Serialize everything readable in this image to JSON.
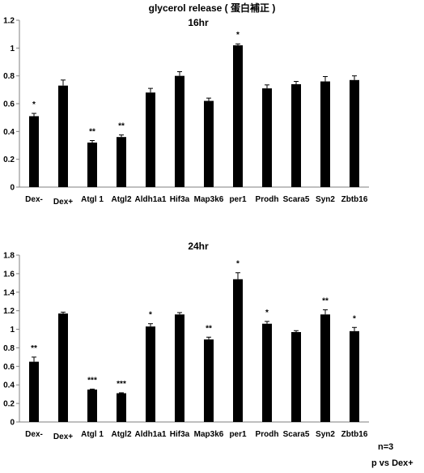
{
  "page": {
    "title": "glycerol release ( 蛋白補正 )",
    "footnote_n": "n=3",
    "footnote_p": "p vs Dex+"
  },
  "colors": {
    "bar": "#000000",
    "axis": "#7f7f7f",
    "text": "#000000"
  },
  "chart_data": [
    {
      "type": "bar",
      "title": "16hr",
      "categories": [
        "Dex-",
        "Dex+",
        "Atgl 1",
        "Atgl2",
        "Aldh1a1",
        "Hif3a",
        "Map3k6",
        "per1",
        "Prodh",
        "Scara5",
        "Syn2",
        "Zbtb16"
      ],
      "values": [
        0.51,
        0.73,
        0.32,
        0.36,
        0.68,
        0.8,
        0.62,
        1.02,
        0.71,
        0.74,
        0.76,
        0.77
      ],
      "errors": [
        0.02,
        0.04,
        0.015,
        0.015,
        0.03,
        0.03,
        0.02,
        0.01,
        0.025,
        0.02,
        0.035,
        0.03
      ],
      "significance": [
        "*",
        "",
        "**",
        "**",
        "",
        "",
        "",
        "*",
        "",
        "",
        "",
        ""
      ],
      "ylim": [
        0,
        1.2
      ],
      "yticks": [
        "0",
        "0.2",
        "0.4",
        "0.6",
        "0.8",
        "1",
        "1.2"
      ],
      "xlabel": "",
      "ylabel": ""
    },
    {
      "type": "bar",
      "title": "24hr",
      "categories": [
        "Dex-",
        "Dex+",
        "Atgl 1",
        "Atgl2",
        "Aldh1a1",
        "Hif3a",
        "Map3k6",
        "per1",
        "Prodh",
        "Scara5",
        "Syn2",
        "Zbtb16"
      ],
      "values": [
        0.65,
        1.17,
        0.35,
        0.31,
        1.03,
        1.16,
        0.89,
        1.54,
        1.06,
        0.97,
        1.16,
        0.98
      ],
      "errors": [
        0.05,
        0.015,
        0.005,
        0.005,
        0.03,
        0.02,
        0.025,
        0.07,
        0.025,
        0.015,
        0.05,
        0.04
      ],
      "significance": [
        "**",
        "",
        "***",
        "***",
        "*",
        "",
        "**",
        "*",
        "*",
        "",
        "**",
        "*"
      ],
      "ylim": [
        0,
        1.8
      ],
      "yticks": [
        "0",
        "0.2",
        "0.4",
        "0.6",
        "0.8",
        "1",
        "1.2",
        "1.4",
        "1.6",
        "1.8"
      ],
      "xlabel": "",
      "ylabel": ""
    }
  ]
}
